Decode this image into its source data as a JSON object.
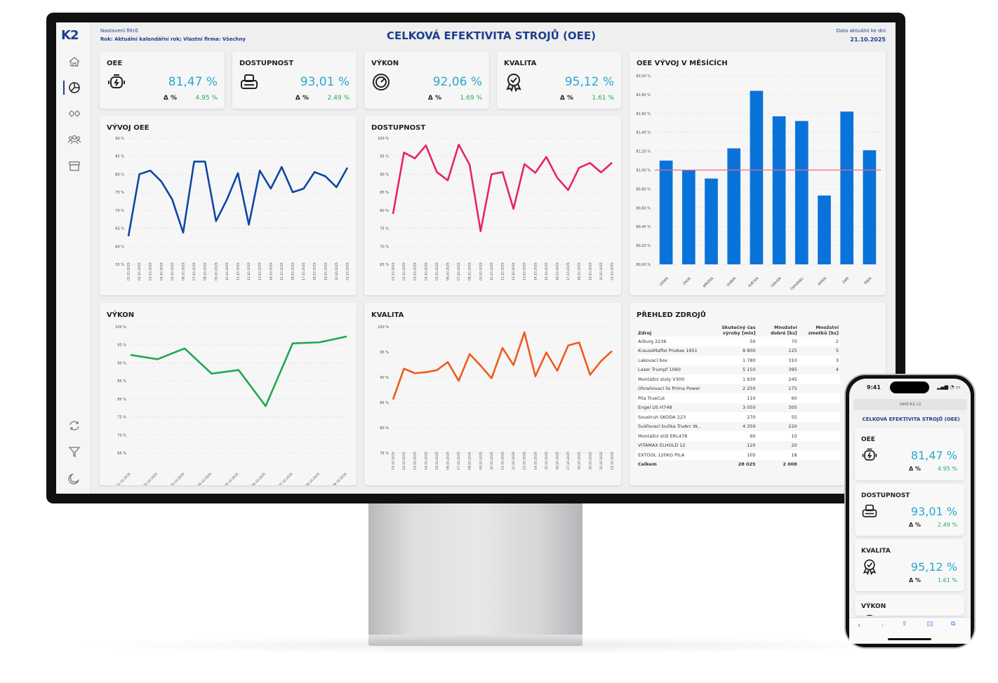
{
  "app": {
    "logo": "K2",
    "filter_label": "Nastavení filtrů",
    "filter_value": "Rok: Aktuální kalendářní rok; Vlastní firma: Všechny",
    "title": "CELKOVÁ EFEKTIVITA STROJŮ (OEE)",
    "date_label": "Data aktuální ke dni",
    "date_value": "21.10.2025"
  },
  "sidebar": {
    "items": [
      {
        "icon": "home-icon"
      },
      {
        "icon": "pie-chart-icon",
        "active": true
      },
      {
        "icon": "gears-icon"
      },
      {
        "icon": "users-icon"
      },
      {
        "icon": "archive-icon"
      }
    ],
    "bottom": [
      {
        "icon": "refresh-icon"
      },
      {
        "icon": "filter-icon"
      },
      {
        "icon": "moon-icon"
      }
    ]
  },
  "kpis": [
    {
      "label": "OEE",
      "icon": "engine-bolt-icon",
      "value": "81,47 %",
      "delta_label": "Δ %",
      "delta": "4.95 %"
    },
    {
      "label": "DOSTUPNOST",
      "icon": "printer-icon",
      "value": "93,01 %",
      "delta_label": "Δ %",
      "delta": "2.49 %"
    },
    {
      "label": "VÝKON",
      "icon": "gauge-icon",
      "value": "92,06 %",
      "delta_label": "Δ %",
      "delta": "1.69 %"
    },
    {
      "label": "KVALITA",
      "icon": "award-icon",
      "value": "95,12 %",
      "delta_label": "Δ %",
      "delta": "1.61 %"
    }
  ],
  "colors": {
    "brand": "#1c3f8f",
    "kpi_value": "#27a9d0",
    "delta_positive": "#27a95a",
    "oee_line": "#0d47a1",
    "dostupnost_line": "#e8245f",
    "vykon_line": "#1fa84f",
    "kvalita_line": "#f05a1a",
    "bar": "#0a73d9",
    "target_line": "#f06a8a"
  },
  "chart_data": [
    {
      "type": "line",
      "title": "VÝVOJ OEE",
      "ylim": [
        55,
        90
      ],
      "y_tick_labels": [
        "55 %",
        "60 %",
        "65 %",
        "70 %",
        "75 %",
        "80 %",
        "85 %",
        "90 %"
      ],
      "grid": true,
      "x": [
        "01.10.2025",
        "02.10.2025",
        "03.10.2025",
        "04.10.2025",
        "05.10.2025",
        "06.10.2025",
        "07.10.2025",
        "08.10.2025",
        "09.10.2025",
        "10.10.2025",
        "11.10.2025",
        "12.10.2025",
        "13.10.2025",
        "14.10.2025",
        "15.10.2025",
        "16.10.2025",
        "17.10.2025",
        "18.10.2025",
        "19.10.2025",
        "20.10.2025",
        "21.10.2025"
      ],
      "values": [
        62.8,
        80,
        81,
        78,
        73,
        63.8,
        83.5,
        83.5,
        67,
        73,
        80.3,
        66,
        81,
        76,
        82,
        75,
        76,
        80.6,
        79.4,
        76.4,
        81.8
      ],
      "color": "#0d47a1"
    },
    {
      "type": "line",
      "title": "DOSTUPNOST",
      "ylim": [
        65,
        100
      ],
      "y_tick_labels": [
        "65 %",
        "70 %",
        "75 %",
        "80 %",
        "85 %",
        "90 %",
        "95 %",
        "100 %"
      ],
      "grid": true,
      "x": [
        "01.10.2025",
        "02.10.2025",
        "03.10.2025",
        "04.10.2025",
        "05.10.2025",
        "06.10.2025",
        "07.10.2025",
        "08.10.2025",
        "09.10.2025",
        "10.10.2025",
        "11.10.2025",
        "12.10.2025",
        "13.10.2025",
        "14.10.2025",
        "15.10.2025",
        "16.10.2025",
        "17.10.2025",
        "18.10.2025",
        "19.10.2025",
        "20.10.2025",
        "21.10.2025"
      ],
      "values": [
        79,
        96,
        94.4,
        98,
        90.6,
        88.3,
        98.2,
        92.6,
        74.2,
        90,
        90.6,
        80.4,
        92.8,
        90.4,
        94.8,
        89,
        85.6,
        91.8,
        93.1,
        90.5,
        93.2
      ],
      "color": "#e8245f"
    },
    {
      "type": "bar",
      "title": "OEE VÝVOJ V MĚSÍCÍCH",
      "ylim": [
        80,
        82
      ],
      "y_tick_labels": [
        "80,00 %",
        "80,20 %",
        "80,40 %",
        "80,60 %",
        "80,80 %",
        "81,00 %",
        "81,20 %",
        "81,40 %",
        "81,60 %",
        "81,80 %",
        "82,00 %"
      ],
      "grid": true,
      "categories": [
        "LEDEN",
        "ÚNOR",
        "BŘEZEN",
        "DUBEN",
        "KVĚTEN",
        "ČERVEN",
        "ČERVENEC",
        "SRPEN",
        "ZÁŘÍ",
        "ŘÍJEN"
      ],
      "values": [
        81.1,
        81.0,
        80.91,
        81.23,
        81.84,
        81.57,
        81.52,
        80.73,
        81.62,
        81.21
      ],
      "reference_line": 81.0,
      "color": "#0a73d9"
    },
    {
      "type": "line",
      "title": "VÝKON",
      "ylim": [
        65,
        100
      ],
      "y_tick_labels": [
        "65 %",
        "70 %",
        "75 %",
        "80 %",
        "85 %",
        "90 %",
        "95 %",
        "100 %"
      ],
      "grid": true,
      "x": [
        "01.10.2025",
        "02.10.2025",
        "03.10.2025",
        "04.10.2025",
        "05.10.2025",
        "06.10.2025",
        "07.10.2025",
        "08.10.2025",
        "09.10.2025"
      ],
      "values": [
        92.2,
        91,
        94,
        87,
        88,
        78,
        95.4,
        95.7,
        97.3
      ],
      "color": "#1fa84f"
    },
    {
      "type": "line",
      "title": "KVALITA",
      "ylim": [
        75,
        100
      ],
      "y_tick_labels": [
        "75 %",
        "80 %",
        "85 %",
        "90 %",
        "95 %",
        "100 %"
      ],
      "grid": true,
      "x": [
        "01.10.2025",
        "02.10.2025",
        "03.10.2025",
        "04.10.2025",
        "05.10.2025",
        "06.10.2025",
        "07.10.2025",
        "08.10.2025",
        "09.10.2025",
        "10.10.2025",
        "11.10.2025",
        "12.10.2025",
        "13.10.2025",
        "14.10.2025",
        "15.10.2025",
        "16.10.2025",
        "17.10.2025",
        "18.10.2025",
        "19.10.2025",
        "20.10.2025",
        "21.10.2025"
      ],
      "values": [
        85.6,
        91.7,
        90.8,
        91,
        91.4,
        93,
        89.3,
        94.6,
        92.3,
        89.8,
        95.8,
        92.4,
        98.9,
        90.2,
        94.9,
        91.3,
        96.3,
        96.9,
        90.5,
        93.2,
        95.2
      ],
      "color": "#f05a1a"
    }
  ],
  "sources": {
    "title": "PŘEHLED ZDROJŮ",
    "columns": [
      "Zdroj",
      "Skutečný čas výroby [min]",
      "Množství dobré [ks]",
      "Množství zmetků [ks]"
    ],
    "rows": [
      [
        "Arburg 2236",
        "50",
        "70",
        "2"
      ],
      [
        "KraussMaffei ProAxe 1951",
        "8 800",
        "125",
        "5"
      ],
      [
        "Lakovací box",
        "1 780",
        "310",
        "3"
      ],
      [
        "Laser Trumpf 1060",
        "5 150",
        "395",
        "4"
      ],
      [
        "Montážní stoly V300",
        "1 930",
        "245",
        ""
      ],
      [
        "Ohraňovací lis Prima Power",
        "2 250",
        "175",
        ""
      ],
      [
        "Pila TrueCut",
        "110",
        "60",
        ""
      ],
      [
        "Engel US H748",
        "3 050",
        "305",
        ""
      ],
      [
        "Soustruh SKODA 223",
        "270",
        "55",
        ""
      ],
      [
        "Svářovací buňka TruArc W...",
        "4 350",
        "220",
        ""
      ],
      [
        "Montážní stůl ERL478",
        "60",
        "10",
        ""
      ],
      [
        "VITAMAX ELHOLD 12",
        "120",
        "20",
        ""
      ],
      [
        "EXTOOL 120KG PILA",
        "105",
        "18",
        ""
      ]
    ],
    "total": [
      "Celkem",
      "28 025",
      "2 008",
      ""
    ]
  },
  "phone": {
    "time": "9:41",
    "url": "next.k2.cz",
    "title": "CELKOVÁ EFEKTIVITA STROJŮ (OEE)"
  }
}
